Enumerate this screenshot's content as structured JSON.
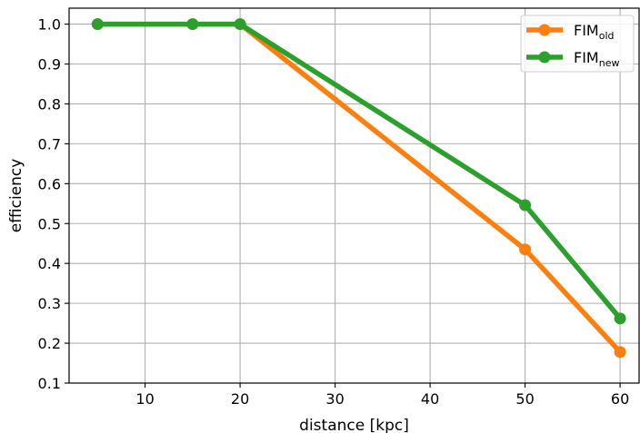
{
  "chart_data": {
    "type": "line",
    "xlabel": "distance [kpc]",
    "ylabel": "efficiency",
    "xlim": [
      2,
      62
    ],
    "ylim": [
      0.1,
      1.04
    ],
    "xticks": [
      10,
      20,
      30,
      40,
      50,
      60
    ],
    "yticks": [
      0.1,
      0.2,
      0.3,
      0.4,
      0.5,
      0.6,
      0.7,
      0.8,
      0.9,
      1.0
    ],
    "xtick_labels": [
      "10",
      "20",
      "30",
      "40",
      "50",
      "60"
    ],
    "ytick_labels": [
      "0.1",
      "0.2",
      "0.3",
      "0.4",
      "0.5",
      "0.6",
      "0.7",
      "0.8",
      "0.9",
      "1.0"
    ],
    "grid": true,
    "legend_position": "top-right",
    "series": [
      {
        "name": "FIM_old",
        "legend_main": "FIM",
        "legend_sub": "old",
        "color": "#ff7f0e",
        "x": [
          5,
          15,
          20,
          50,
          60
        ],
        "y": [
          1.0,
          1.0,
          1.0,
          0.435,
          0.178
        ]
      },
      {
        "name": "FIM_new",
        "legend_main": "FIM",
        "legend_sub": "new",
        "color": "#2ca02c",
        "x": [
          5,
          15,
          20,
          50,
          60
        ],
        "y": [
          1.0,
          1.0,
          1.0,
          0.546,
          0.262
        ]
      }
    ]
  }
}
